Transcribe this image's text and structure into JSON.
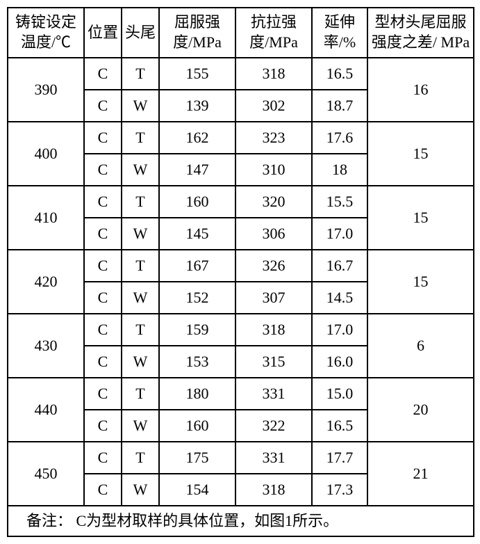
{
  "table": {
    "background_color": "#ffffff",
    "border_color": "#000000",
    "text_color": "#000000",
    "font_size": 22,
    "headers": {
      "temp": "铸锭设定温度/℃",
      "pos": "位置",
      "ht": "头尾",
      "yield": "屈服强度/MPa",
      "tensile": "抗拉强度/MPa",
      "elong": "延伸率/%",
      "diff": "型材头尾屈服强度之差/ MPa"
    },
    "groups": [
      {
        "temp": "390",
        "diff": "16",
        "rows": [
          {
            "pos": "C",
            "ht": "T",
            "yield": "155",
            "tensile": "318",
            "elong": "16.5"
          },
          {
            "pos": "C",
            "ht": "W",
            "yield": "139",
            "tensile": "302",
            "elong": "18.7"
          }
        ]
      },
      {
        "temp": "400",
        "diff": "15",
        "rows": [
          {
            "pos": "C",
            "ht": "T",
            "yield": "162",
            "tensile": "323",
            "elong": "17.6"
          },
          {
            "pos": "C",
            "ht": "W",
            "yield": "147",
            "tensile": "310",
            "elong": "18"
          }
        ]
      },
      {
        "temp": "410",
        "diff": "15",
        "rows": [
          {
            "pos": "C",
            "ht": "T",
            "yield": "160",
            "tensile": "320",
            "elong": "15.5"
          },
          {
            "pos": "C",
            "ht": "W",
            "yield": "145",
            "tensile": "306",
            "elong": "17.0"
          }
        ]
      },
      {
        "temp": "420",
        "diff": "15",
        "rows": [
          {
            "pos": "C",
            "ht": "T",
            "yield": "167",
            "tensile": "326",
            "elong": "16.7"
          },
          {
            "pos": "C",
            "ht": "W",
            "yield": "152",
            "tensile": "307",
            "elong": "14.5"
          }
        ]
      },
      {
        "temp": "430",
        "diff": "6",
        "rows": [
          {
            "pos": "C",
            "ht": "T",
            "yield": "159",
            "tensile": "318",
            "elong": "17.0"
          },
          {
            "pos": "C",
            "ht": "W",
            "yield": "153",
            "tensile": "315",
            "elong": "16.0"
          }
        ]
      },
      {
        "temp": "440",
        "diff": "20",
        "rows": [
          {
            "pos": "C",
            "ht": "T",
            "yield": "180",
            "tensile": "331",
            "elong": "15.0"
          },
          {
            "pos": "C",
            "ht": "W",
            "yield": "160",
            "tensile": "322",
            "elong": "16.5"
          }
        ]
      },
      {
        "temp": "450",
        "diff": "21",
        "rows": [
          {
            "pos": "C",
            "ht": "T",
            "yield": "175",
            "tensile": "331",
            "elong": "17.7"
          },
          {
            "pos": "C",
            "ht": "W",
            "yield": "154",
            "tensile": "318",
            "elong": "17.3"
          }
        ]
      }
    ],
    "remark": "备注：  C为型材取样的具体位置，如图1所示。"
  }
}
